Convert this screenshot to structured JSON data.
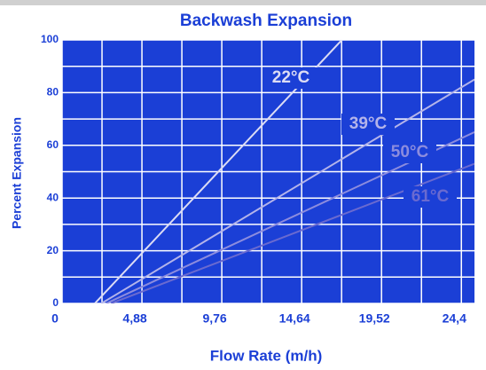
{
  "chart_data": {
    "type": "line",
    "title": "Backwash Expansion",
    "x_label": "Flow Rate (m/h)",
    "y_label": "Percent Expansion",
    "background": "#1b3fd6",
    "xlim": [
      0,
      25.2
    ],
    "ylim": [
      0,
      100
    ],
    "xticks": [
      0,
      {
        "value": 4.88,
        "label": "4,88"
      },
      {
        "value": 9.76,
        "label": "9,76"
      },
      {
        "value": 14.64,
        "label": "14,64"
      },
      {
        "value": 19.52,
        "label": "19,52"
      },
      {
        "value": 24.4,
        "label": "24,4"
      }
    ],
    "yticks": [
      0,
      20,
      40,
      60,
      80,
      100
    ],
    "xgrid": [
      0,
      2.44,
      4.88,
      7.32,
      9.76,
      12.2,
      14.64,
      17.08,
      19.52,
      21.96,
      24.4
    ],
    "ygrid": [
      0,
      10,
      20,
      30,
      40,
      50,
      60,
      70,
      80,
      90,
      100
    ],
    "grid": true,
    "series": [
      {
        "name": "22°C",
        "color": "#dcdcf4",
        "x": [
          2.0,
          17.1
        ],
        "values": [
          0,
          100
        ]
      },
      {
        "name": "39°C",
        "color": "#b4b4ea",
        "x": [
          2.4,
          25.2
        ],
        "values": [
          0,
          85
        ]
      },
      {
        "name": "50°C",
        "color": "#8c8cde",
        "x": [
          2.7,
          25.2
        ],
        "values": [
          0,
          65
        ]
      },
      {
        "name": "61°C",
        "color": "#6a6ad0",
        "x": [
          3.0,
          25.2
        ],
        "values": [
          0,
          53
        ]
      }
    ]
  }
}
